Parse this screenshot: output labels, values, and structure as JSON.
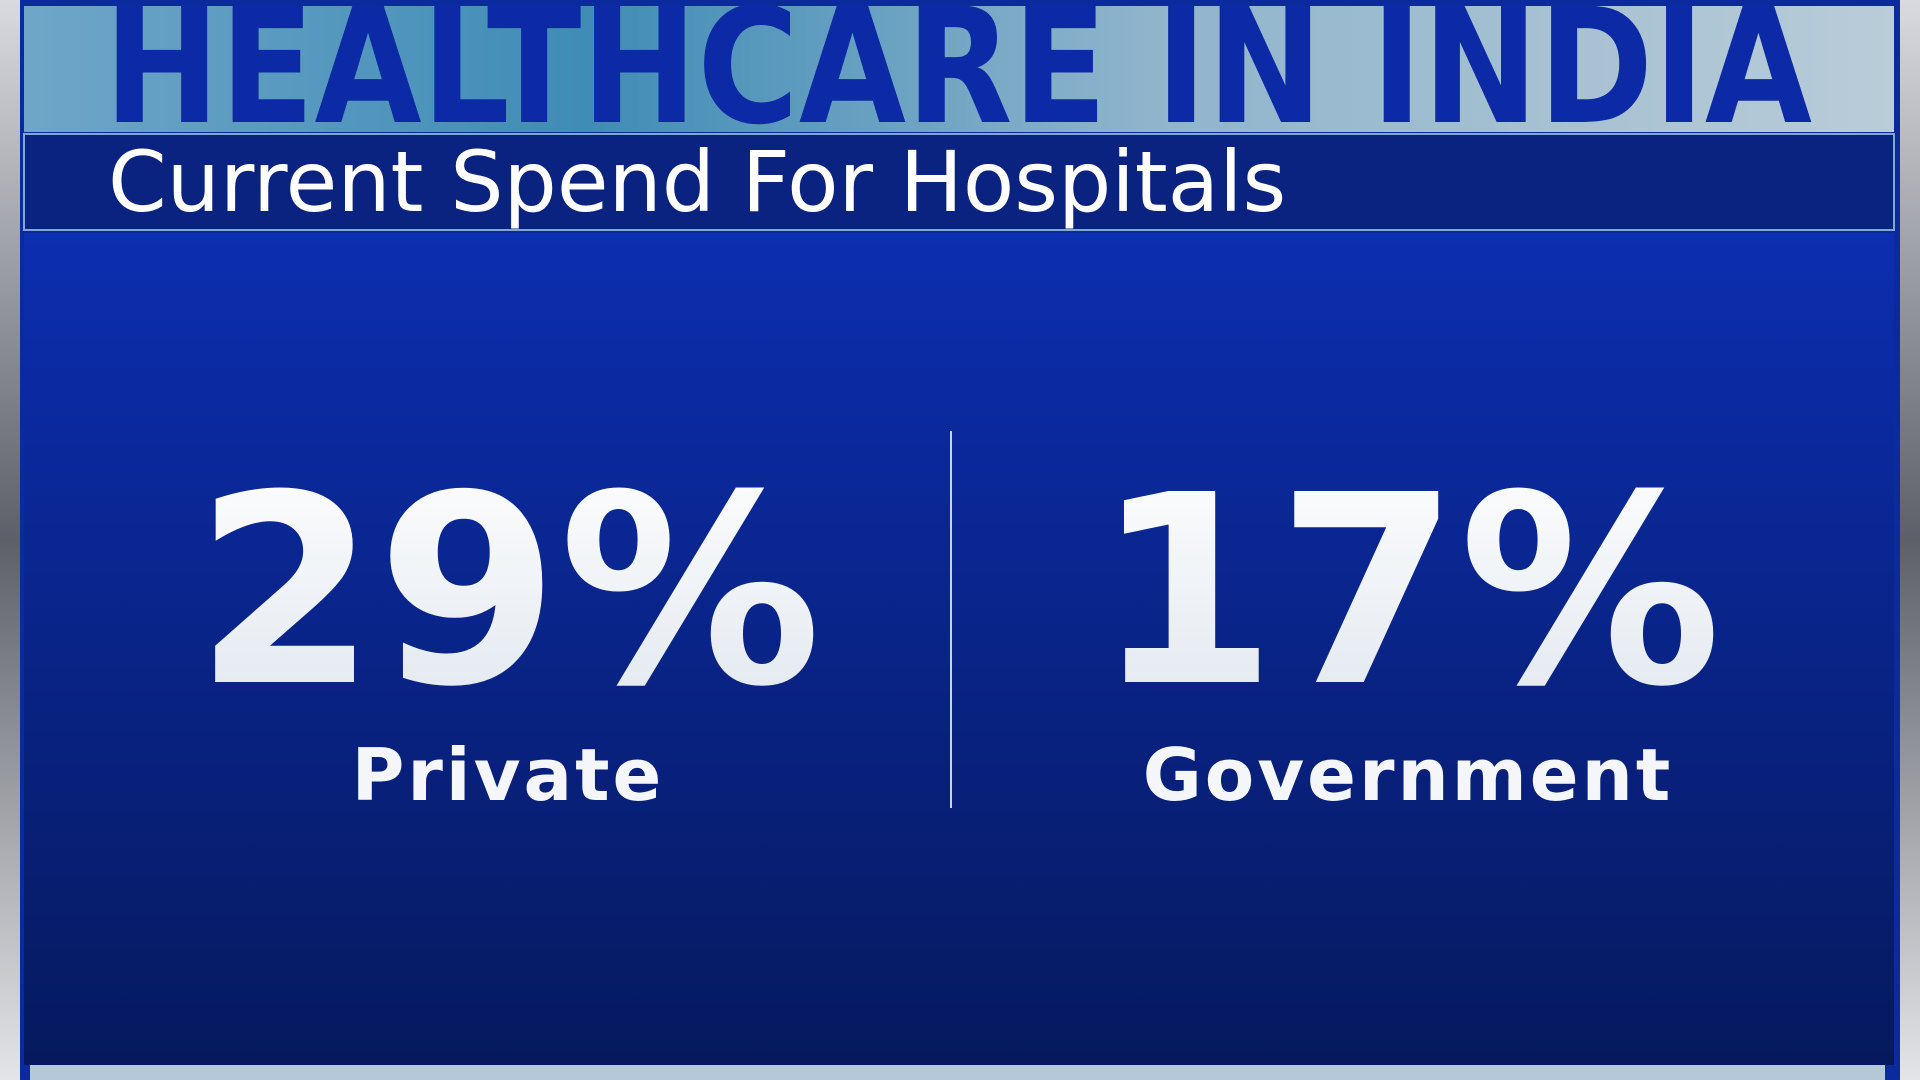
{
  "header": {
    "title": "HEALTHCARE IN INDIA",
    "subtitle": "Current Spend For Hospitals"
  },
  "stats": [
    {
      "value": "29%",
      "label": "Private"
    },
    {
      "value": "17%",
      "label": "Government"
    }
  ]
}
